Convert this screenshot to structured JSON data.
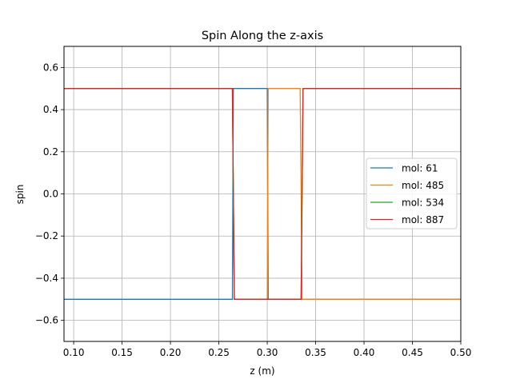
{
  "chart_data": {
    "type": "line",
    "title": "Spin Along the z-axis",
    "xlabel": "z (m)",
    "ylabel": "spin",
    "xlim": [
      0.09,
      0.5
    ],
    "ylim": [
      -0.7,
      0.7
    ],
    "xticks": [
      0.1,
      0.15,
      0.2,
      0.25,
      0.3,
      0.35,
      0.4,
      0.45,
      0.5
    ],
    "xtick_labels": [
      "0.10",
      "0.15",
      "0.20",
      "0.25",
      "0.30",
      "0.35",
      "0.40",
      "0.45",
      "0.50"
    ],
    "yticks": [
      -0.6,
      -0.4,
      -0.2,
      0.0,
      0.2,
      0.4,
      0.6
    ],
    "ytick_labels": [
      "−0.6",
      "−0.4",
      "−0.2",
      "0.0",
      "0.2",
      "0.4",
      "0.6"
    ],
    "grid": true,
    "legend_position": "center-right",
    "series": [
      {
        "name": "mol: 61",
        "color": "#1f77b4",
        "x": [
          0.09,
          0.264,
          0.265,
          0.3,
          0.301,
          0.5
        ],
        "y": [
          -0.5,
          -0.5,
          0.5,
          0.5,
          -0.5,
          -0.5
        ]
      },
      {
        "name": "mol: 485",
        "color": "#ff7f0e",
        "x": [
          0.09,
          0.264,
          0.266,
          0.3,
          0.301,
          0.334,
          0.336,
          0.5
        ],
        "y": [
          0.5,
          0.5,
          -0.5,
          -0.5,
          0.5,
          0.5,
          -0.5,
          -0.5
        ]
      },
      {
        "name": "mol: 534",
        "color": "#2ca02c",
        "x": [
          0.09,
          0.264,
          0.266,
          0.335,
          0.337,
          0.5
        ],
        "y": [
          0.5,
          0.5,
          -0.5,
          -0.5,
          0.5,
          0.5
        ]
      },
      {
        "name": "mol: 887",
        "color": "#d62728",
        "x": [
          0.09,
          0.264,
          0.266,
          0.335,
          0.337,
          0.5
        ],
        "y": [
          0.5,
          0.5,
          -0.5,
          -0.5,
          0.5,
          0.5
        ]
      }
    ]
  }
}
